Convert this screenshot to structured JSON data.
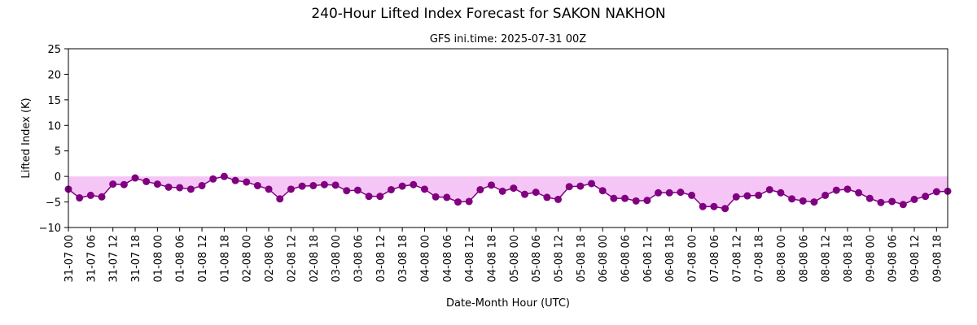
{
  "chart_data": {
    "type": "line",
    "title": "240-Hour Lifted Index Forecast for SAKON NAKHON",
    "subtitle": "GFS ini.time: 2025-07-31 00Z",
    "xlabel": "Date-Month Hour (UTC)",
    "ylabel": "Lifted Index (K)",
    "ylim": [
      -10,
      25
    ],
    "yticks": [
      -10,
      -5,
      0,
      5,
      10,
      15,
      20,
      25
    ],
    "x_step_hours": 3,
    "x_tick_labels": [
      "31-07 00",
      "31-07 06",
      "31-07 12",
      "31-07 18",
      "01-08 00",
      "01-08 06",
      "01-08 12",
      "01-08 18",
      "02-08 00",
      "02-08 06",
      "02-08 12",
      "02-08 18",
      "03-08 00",
      "03-08 06",
      "03-08 12",
      "03-08 18",
      "04-08 00",
      "04-08 06",
      "04-08 12",
      "04-08 18",
      "05-08 00",
      "05-08 06",
      "05-08 12",
      "05-08 18",
      "06-08 00",
      "06-08 06",
      "06-08 12",
      "06-08 18",
      "07-08 00",
      "07-08 06",
      "07-08 12",
      "07-08 18",
      "08-08 00",
      "08-08 06",
      "08-08 12",
      "08-08 18",
      "09-08 00",
      "09-08 06",
      "09-08 12",
      "09-08 18"
    ],
    "series": [
      {
        "color": "#800080",
        "fill_color": "#f5c6f5",
        "values": [
          -2.5,
          -4.2,
          -3.7,
          -4.0,
          -1.5,
          -1.6,
          -0.3,
          -1.0,
          -1.5,
          -2.1,
          -2.2,
          -2.5,
          -1.8,
          -0.5,
          0.0,
          -0.8,
          -1.1,
          -1.8,
          -2.5,
          -4.4,
          -2.5,
          -1.9,
          -1.8,
          -1.6,
          -1.7,
          -2.8,
          -2.7,
          -3.9,
          -3.9,
          -2.6,
          -1.9,
          -1.6,
          -2.5,
          -4.0,
          -4.1,
          -5.0,
          -4.9,
          -2.6,
          -1.7,
          -2.9,
          -2.3,
          -3.5,
          -3.1,
          -4.1,
          -4.5,
          -2.0,
          -1.9,
          -1.4,
          -2.8,
          -4.3,
          -4.3,
          -4.8,
          -4.7,
          -3.2,
          -3.2,
          -3.1,
          -3.7,
          -5.9,
          -5.9,
          -6.3,
          -4.0,
          -3.8,
          -3.7,
          -2.6,
          -3.2,
          -4.4,
          -4.8,
          -5.0,
          -3.7,
          -2.7,
          -2.5,
          -3.2,
          -4.3,
          -5.1,
          -4.9,
          -5.5,
          -4.5,
          -3.9,
          -3.0,
          -2.9
        ]
      }
    ]
  }
}
